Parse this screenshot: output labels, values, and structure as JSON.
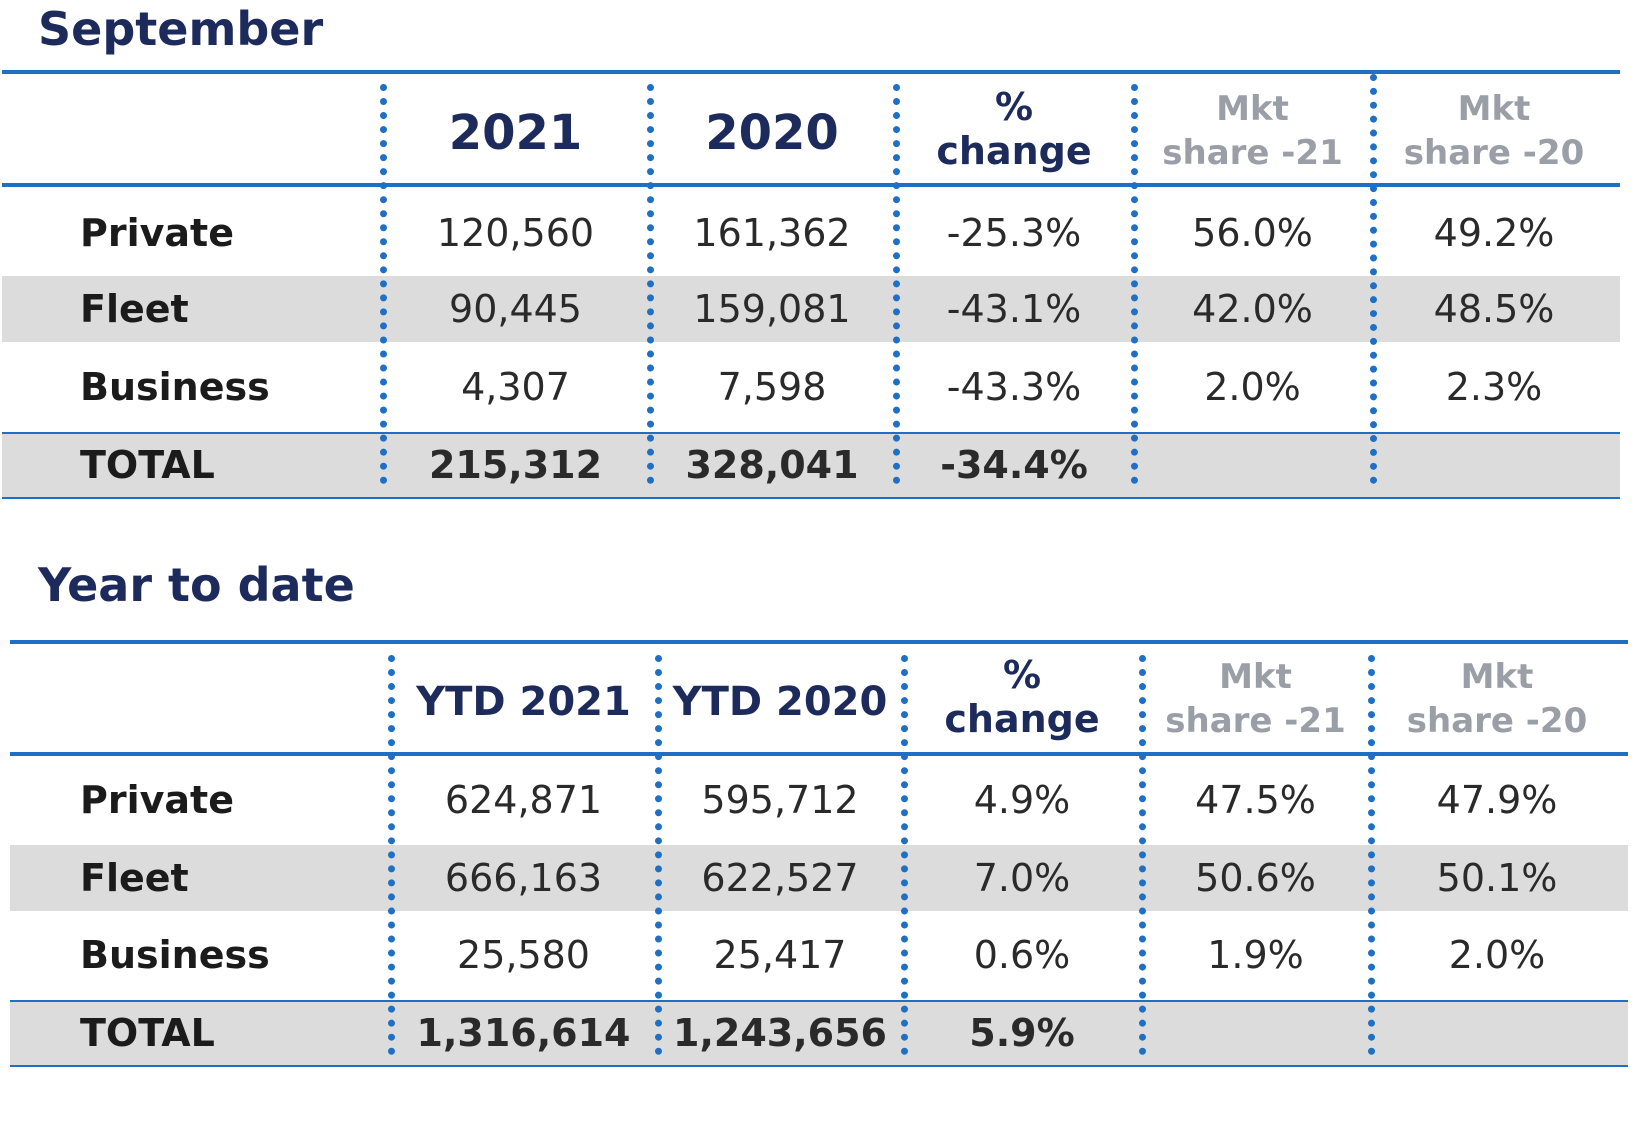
{
  "chart_data": [
    {
      "type": "table",
      "title": "September",
      "columns": [
        "",
        "2021",
        "2020",
        "% change",
        "Mkt share -21",
        "Mkt share -20"
      ],
      "header_lines": {
        "change": [
          "%",
          "change"
        ],
        "mkt21": [
          "Mkt",
          "share -21"
        ],
        "mkt20": [
          "Mkt",
          "share -20"
        ]
      },
      "rows": [
        {
          "label": "Private",
          "cells": [
            "120,560",
            "161,362",
            "-25.3%",
            "56.0%",
            "49.2%"
          ]
        },
        {
          "label": "Fleet",
          "cells": [
            "90,445",
            "159,081",
            "-43.1%",
            "42.0%",
            "48.5%"
          ]
        },
        {
          "label": "Business",
          "cells": [
            "4,307",
            "7,598",
            "-43.3%",
            "2.0%",
            "2.3%"
          ]
        }
      ],
      "total": {
        "label": "TOTAL",
        "cells": [
          "215,312",
          "328,041",
          "-34.4%",
          "",
          ""
        ]
      }
    },
    {
      "type": "table",
      "title": "Year to date",
      "columns": [
        "",
        "YTD 2021",
        "YTD 2020",
        "% change",
        "Mkt share -21",
        "Mkt share -20"
      ],
      "header_lines": {
        "change": [
          "%",
          "change"
        ],
        "mkt21": [
          "Mkt",
          "share -21"
        ],
        "mkt20": [
          "Mkt",
          "share -20"
        ]
      },
      "rows": [
        {
          "label": "Private",
          "cells": [
            "624,871",
            "595,712",
            "4.9%",
            "47.5%",
            "47.9%"
          ]
        },
        {
          "label": "Fleet",
          "cells": [
            "666,163",
            "622,527",
            "7.0%",
            "50.6%",
            "50.1%"
          ]
        },
        {
          "label": "Business",
          "cells": [
            "25,580",
            "25,417",
            "0.6%",
            "1.9%",
            "2.0%"
          ]
        }
      ],
      "total": {
        "label": "TOTAL",
        "cells": [
          "1,316,614",
          "1,243,656",
          "5.9%",
          "",
          ""
        ]
      }
    }
  ],
  "colors": {
    "title": "#1d2a5c",
    "rule": "#1f6fc4",
    "band": "#dcdcdc",
    "muted_header": "#9a9ea6"
  }
}
